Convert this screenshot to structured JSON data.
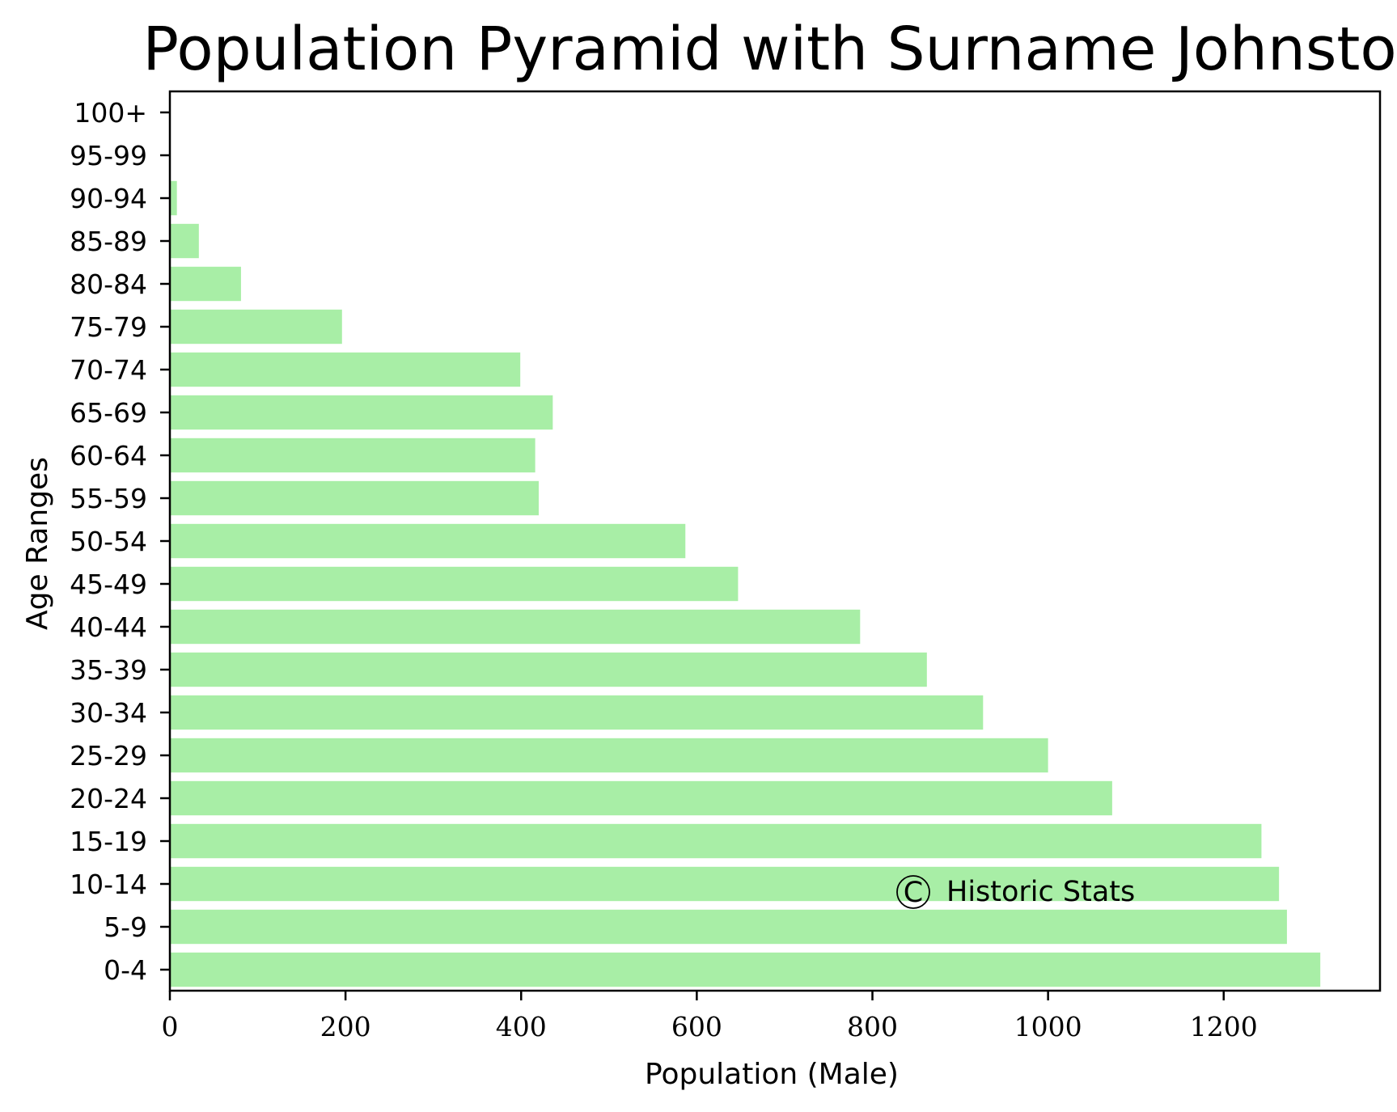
{
  "chart_data": {
    "type": "bar",
    "orientation": "horizontal",
    "title": "Population Pyramid with Surname Johnston",
    "xlabel": "Population (Male)",
    "ylabel": "Age Ranges",
    "categories": [
      "0-4",
      "5-9",
      "10-14",
      "15-19",
      "20-24",
      "25-29",
      "30-34",
      "35-39",
      "40-44",
      "45-49",
      "50-54",
      "55-59",
      "60-64",
      "65-69",
      "70-74",
      "75-79",
      "80-84",
      "85-89",
      "90-94",
      "95-99",
      "100+"
    ],
    "values": [
      1310,
      1272,
      1263,
      1243,
      1073,
      1000,
      926,
      862,
      786,
      647,
      587,
      420,
      416,
      436,
      399,
      196,
      81,
      33,
      8,
      0,
      0
    ],
    "xlim": [
      0,
      1378
    ],
    "xticks": [
      "0",
      "200",
      "400",
      "600",
      "800",
      "1000",
      "1200"
    ],
    "bar_color": "#a8eea6",
    "grid": false,
    "legend": "none",
    "watermark": "© Historic Stats"
  }
}
